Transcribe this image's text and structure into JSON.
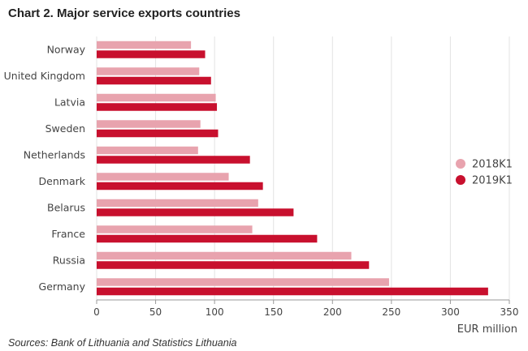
{
  "chart_data": {
    "type": "bar",
    "orientation": "horizontal",
    "title": "Chart 2. Major service exports countries",
    "source": "Sources: Bank of Lithuania and Statistics Lithuania",
    "xlabel": "EUR million",
    "ylabel": "",
    "xlim": [
      0,
      350
    ],
    "xticks": [
      0,
      50,
      100,
      150,
      200,
      250,
      300,
      350
    ],
    "grid": true,
    "legend_position": "right",
    "categories": [
      "Norway",
      "United Kingdom",
      "Latvia",
      "Sweden",
      "Netherlands",
      "Denmark",
      "Belarus",
      "France",
      "Russia",
      "Germany"
    ],
    "series": [
      {
        "name": "2018K1",
        "color": "#e8a3ae",
        "values": [
          80,
          87,
          101,
          88,
          86,
          112,
          137,
          132,
          216,
          248
        ]
      },
      {
        "name": "2019K1",
        "color": "#c8102e",
        "values": [
          92,
          97,
          102,
          103,
          130,
          141,
          167,
          187,
          231,
          332
        ]
      }
    ]
  }
}
